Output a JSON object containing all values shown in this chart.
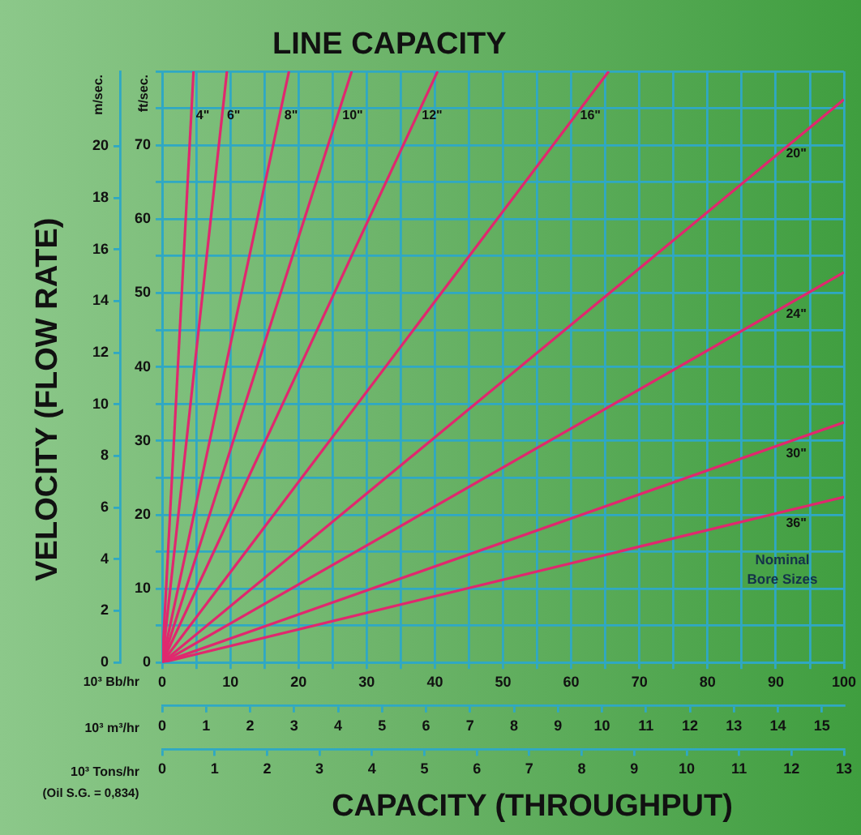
{
  "chart_data": {
    "type": "line",
    "title": "LINE CAPACITY",
    "xlabel": "10³ Bb/hr",
    "x2label": "10³ m³/hr",
    "ylabel": "ft/sec.",
    "y2label": "m/sec.",
    "annotations": [
      "VELOCITY (FLOW RATE)",
      "CAPACITY (THROUGHPUT)",
      "Nominal Bore Sizes",
      "10³ Tons/hr",
      "(Oil S.G. = 0,834)",
      "0",
      "1",
      "2",
      "3",
      "4",
      "5",
      "6",
      "7",
      "8",
      "9",
      "10",
      "11",
      "12",
      "13"
    ],
    "xlim": [
      0,
      100
    ],
    "xticks": [
      0,
      {
        "value": 5,
        "label": null
      },
      10,
      {
        "value": 15,
        "label": null
      },
      20,
      {
        "value": 25,
        "label": null
      },
      30,
      {
        "value": 35,
        "label": null
      },
      40,
      {
        "value": 45,
        "label": null
      },
      50,
      {
        "value": 55,
        "label": null
      },
      60,
      {
        "value": 65,
        "label": null
      },
      70,
      {
        "value": 75,
        "label": null
      },
      80,
      {
        "value": 85,
        "label": null
      },
      90,
      {
        "value": 95,
        "label": null
      },
      100
    ],
    "x2lim": [
      0,
      15.5
    ],
    "x2ticks": [
      0,
      1,
      2,
      3,
      4,
      5,
      6,
      7,
      8,
      9,
      10,
      11,
      12,
      13,
      14,
      15
    ],
    "ylim": [
      0,
      80
    ],
    "yticks": [
      0,
      {
        "value": 5,
        "label": null
      },
      10,
      {
        "value": 15,
        "label": null
      },
      20,
      {
        "value": 25,
        "label": null
      },
      30,
      {
        "value": 35,
        "label": null
      },
      40,
      {
        "value": 45,
        "label": null
      },
      50,
      {
        "value": 55,
        "label": null
      },
      60,
      {
        "value": 65,
        "label": null
      },
      70,
      {
        "value": 75,
        "label": null
      },
      {
        "value": 80,
        "label": null
      }
    ],
    "y2lim": [
      0,
      22.9
    ],
    "y2ticks": [
      0,
      2,
      4,
      6,
      8,
      10,
      12,
      14,
      16,
      18,
      20
    ],
    "grid": true,
    "legend": false,
    "marker": "none",
    "line_style": "solid",
    "series": [
      {
        "name": "4\"",
        "color": "#e0286e",
        "x": [
          0,
          4.6
        ],
        "values": [
          0,
          80
        ]
      },
      {
        "name": "6\"",
        "color": "#e0286e",
        "x": [
          0,
          9.5
        ],
        "values": [
          0,
          80
        ]
      },
      {
        "name": "8\"",
        "color": "#e0286e",
        "x": [
          0,
          18.6
        ],
        "values": [
          0,
          80
        ]
      },
      {
        "name": "10\"",
        "color": "#e0286e",
        "x": [
          0,
          27.8
        ],
        "values": [
          0,
          80
        ]
      },
      {
        "name": "12\"",
        "color": "#e0286e",
        "x": [
          0,
          40.4
        ],
        "values": [
          0,
          80
        ]
      },
      {
        "name": "16\"",
        "color": "#e0286e",
        "x": [
          0,
          65.5
        ],
        "values": [
          0,
          80
        ]
      },
      {
        "name": "20\"",
        "color": "#e0286e",
        "x": [
          0,
          100
        ],
        "values": [
          0,
          76.2
        ]
      },
      {
        "name": "24\"",
        "color": "#e0286e",
        "x": [
          0,
          100
        ],
        "values": [
          0,
          52.8
        ]
      },
      {
        "name": "30\"",
        "color": "#e0286e",
        "x": [
          0,
          100
        ],
        "values": [
          0,
          32.5
        ]
      },
      {
        "name": "36\"",
        "color": "#e0286e",
        "x": [
          0,
          100
        ],
        "values": [
          0,
          22.4
        ]
      }
    ]
  }
}
